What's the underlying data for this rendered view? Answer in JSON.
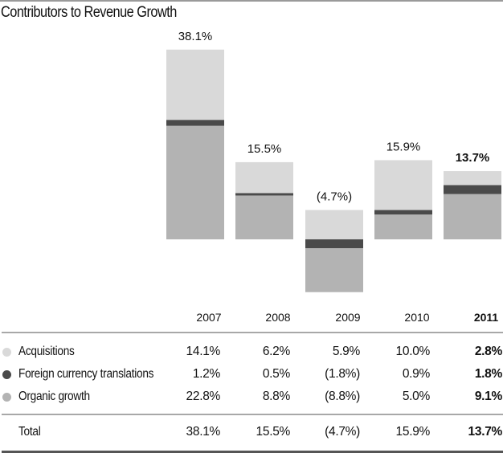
{
  "title": "Contributors to Revenue Growth",
  "colors": {
    "acquisitions": "#d9d9d9",
    "fx": "#4a4a4a",
    "organic": "#b3b3b3"
  },
  "chart_data": {
    "type": "bar",
    "stacked": true,
    "title": "Contributors to Revenue Growth",
    "xlabel": "",
    "ylabel": "",
    "categories": [
      "2007",
      "2008",
      "2009",
      "2010",
      "2011"
    ],
    "highlight_category": "2011",
    "series": [
      {
        "name": "Acquisitions",
        "key": "acquisitions",
        "values": [
          14.1,
          6.2,
          5.9,
          10.0,
          2.8
        ]
      },
      {
        "name": "Foreign currency translations",
        "key": "fx",
        "values": [
          1.2,
          0.5,
          -1.8,
          0.9,
          1.8
        ]
      },
      {
        "name": "Organic growth",
        "key": "organic",
        "values": [
          22.8,
          8.8,
          -8.8,
          5.0,
          9.1
        ]
      }
    ],
    "totals": [
      38.1,
      15.5,
      -4.7,
      15.9,
      13.7
    ],
    "total_labels": [
      "38.1%",
      "15.5%",
      "(4.7%)",
      "15.9%",
      "13.7%"
    ],
    "stack_order_from_zero": {
      "2007": [
        "organic",
        "fx",
        "acquisitions"
      ],
      "2008": [
        "organic",
        "fx",
        "acquisitions"
      ],
      "2009": [
        "acquisitions",
        "fx",
        "organic"
      ],
      "2010": [
        "organic",
        "fx",
        "acquisitions"
      ],
      "2011": [
        "organic",
        "fx",
        "acquisitions"
      ]
    },
    "ylim": [
      -10.8,
      38.1
    ],
    "grid": false,
    "legend": "table-below"
  },
  "table": {
    "columns": [
      "2007",
      "2008",
      "2009",
      "2010",
      "2011"
    ],
    "rows": [
      {
        "label": "Acquisitions",
        "key": "acquisitions",
        "values": [
          "14.1%",
          "6.2%",
          "5.9%",
          "10.0%",
          "2.8%"
        ]
      },
      {
        "label": "Foreign currency translations",
        "key": "fx",
        "values": [
          "1.2%",
          "0.5%",
          "(1.8%)",
          "0.9%",
          "1.8%"
        ]
      },
      {
        "label": "Organic growth",
        "key": "organic",
        "values": [
          "22.8%",
          "8.8%",
          "(8.8%)",
          "5.0%",
          "9.1%"
        ]
      }
    ],
    "total": {
      "label": "Total",
      "values": [
        "38.1%",
        "15.5%",
        "(4.7%)",
        "15.9%",
        "13.7%"
      ]
    }
  }
}
